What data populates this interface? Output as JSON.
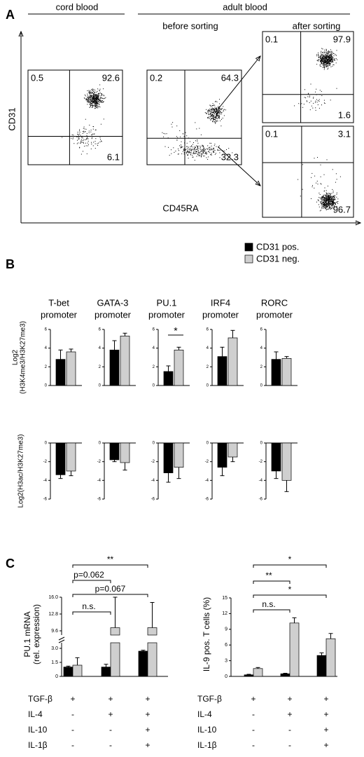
{
  "panel_a": {
    "label": "A",
    "headers": {
      "cord": "cord blood",
      "adult": "adult blood",
      "before": "before sorting",
      "after": "after sorting"
    },
    "y_label": "CD31",
    "x_label": "CD45RA",
    "plots": [
      {
        "quadrants": [
          0.5,
          92.6,
          6.1
        ]
      },
      {
        "quadrants": [
          0.2,
          64.3,
          32.3
        ]
      },
      {
        "quadrants": [
          0.1,
          97.9,
          1.6
        ]
      },
      {
        "quadrants": [
          0.1,
          3.1,
          96.7
        ]
      }
    ]
  },
  "panel_b": {
    "label": "B",
    "series": [
      {
        "name": "CD31 pos.",
        "color": "#000000"
      },
      {
        "name": "CD31 neg.",
        "color": "#cfcfcf"
      }
    ],
    "groups": [
      [
        "T-bet",
        "promoter"
      ],
      [
        "GATA-3",
        "promoter"
      ],
      [
        "PU.1",
        "promoter"
      ],
      [
        "IRF4",
        "promoter"
      ],
      [
        "RORC",
        "promoter"
      ]
    ],
    "charts": [
      {
        "y_label": [
          "Log2",
          "(H3K4me3/H3K27me3)"
        ],
        "ylim": [
          0,
          6
        ],
        "yticks": [
          0,
          2,
          4,
          6
        ],
        "values": [
          [
            2.8,
            3.6
          ],
          [
            3.8,
            5.3
          ],
          [
            1.5,
            3.8
          ],
          [
            3.1,
            5.1
          ],
          [
            2.8,
            2.9
          ]
        ],
        "errors": [
          [
            1.0,
            0.3
          ],
          [
            1.0,
            0.3
          ],
          [
            0.6,
            0.3
          ],
          [
            1.0,
            0.8
          ],
          [
            0.8,
            0.2
          ]
        ],
        "annotation": "*"
      },
      {
        "y_label": [
          "Log2(H3ac/H3K27me3)"
        ],
        "ylim": [
          -6,
          0
        ],
        "yticks": [
          0,
          -2,
          -4,
          -6
        ],
        "values": [
          [
            -3.4,
            -3.0
          ],
          [
            -1.8,
            -2.1
          ],
          [
            -3.2,
            -2.6
          ],
          [
            -2.6,
            -1.5
          ],
          [
            -3.0,
            -4.0
          ]
        ],
        "errors": [
          [
            0.4,
            0.5
          ],
          [
            0.2,
            0.8
          ],
          [
            1.0,
            1.2
          ],
          [
            0.9,
            0.5
          ],
          [
            0.8,
            1.2
          ]
        ]
      }
    ]
  },
  "panel_c": {
    "label": "C",
    "conditions": [
      {
        "name": "TGF-β",
        "signs": [
          "+",
          "+",
          "+"
        ]
      },
      {
        "name": "IL-4",
        "signs": [
          "-",
          "+",
          "+"
        ]
      },
      {
        "name": "IL-10",
        "signs": [
          "-",
          "-",
          "+"
        ]
      },
      {
        "name": "IL-1β",
        "signs": [
          "-",
          "-",
          "+"
        ]
      }
    ],
    "left": {
      "y_label": [
        "PU.1 mRNA",
        "(rel. expression)"
      ],
      "ylim": [
        0,
        3.6
      ],
      "yticks": [
        0,
        1.5,
        {
          "value": 3,
          "label": "3.0"
        }
      ],
      "ylim_upper": [
        8.8,
        16
      ],
      "yticks_upper": [
        9.6,
        12.8,
        {
          "value": 16,
          "label": "16.0"
        }
      ],
      "values": [
        [
          1.0,
          1.2
        ],
        [
          1.0,
          10.2
        ],
        [
          2.7,
          10.2
        ]
      ],
      "errors": [
        [
          0.1,
          0.8
        ],
        [
          0.3,
          5.8
        ],
        [
          0.1,
          4.8
        ]
      ],
      "annotations": [
        "**",
        "p=0.062",
        "p=0.067",
        "n.s."
      ]
    },
    "right": {
      "y_label": [
        "IL-9 pos. T cells (%)"
      ],
      "ylim": [
        0,
        15
      ],
      "yticks": [
        0,
        3,
        6,
        9,
        12,
        15
      ],
      "values": [
        [
          0.3,
          1.5
        ],
        [
          0.5,
          10.2
        ],
        [
          4.0,
          7.2
        ]
      ],
      "errors": [
        [
          0.1,
          0.2
        ],
        [
          0.1,
          1.0
        ],
        [
          0.5,
          1.0
        ]
      ],
      "annotations": [
        "*",
        "**",
        "*",
        "n.s."
      ]
    }
  }
}
